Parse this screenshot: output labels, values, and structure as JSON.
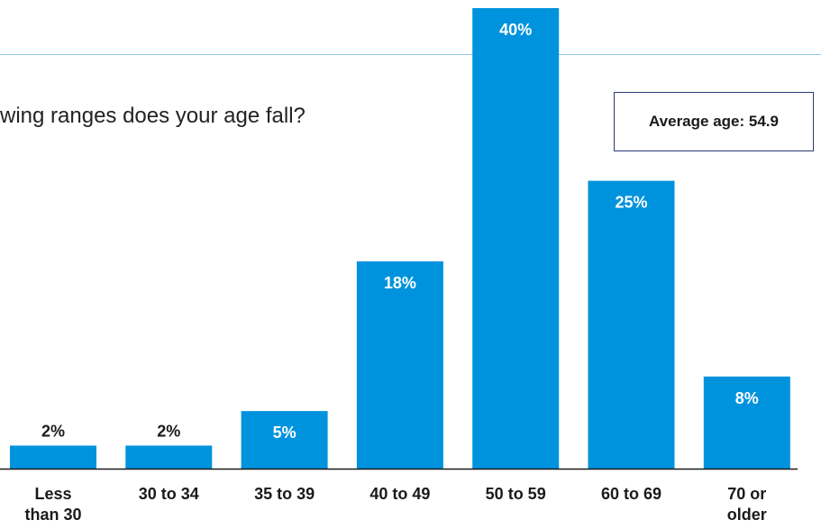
{
  "question": "wing ranges does your age fall?",
  "average_box": {
    "text": "Average age: 54.9"
  },
  "colors": {
    "bar": "#0093dd",
    "label_inside": "#ffffff",
    "label_outside": "#1a1a1a",
    "axis": "#1a1a1a"
  },
  "chart_data": {
    "type": "bar",
    "categories": [
      [
        "Less",
        "than 30"
      ],
      [
        "30 to 34"
      ],
      [
        "35 to 39"
      ],
      [
        "40 to 49"
      ],
      [
        "50 to 59"
      ],
      [
        "60 to 69"
      ],
      [
        "70 or",
        "older"
      ]
    ],
    "values": [
      2,
      2,
      5,
      18,
      40,
      25,
      8
    ],
    "value_labels": [
      "2%",
      "2%",
      "5%",
      "18%",
      "40%",
      "25%",
      "8%"
    ],
    "unit": "%",
    "ylim": [
      0,
      40
    ],
    "grid": false,
    "legend": "none"
  }
}
